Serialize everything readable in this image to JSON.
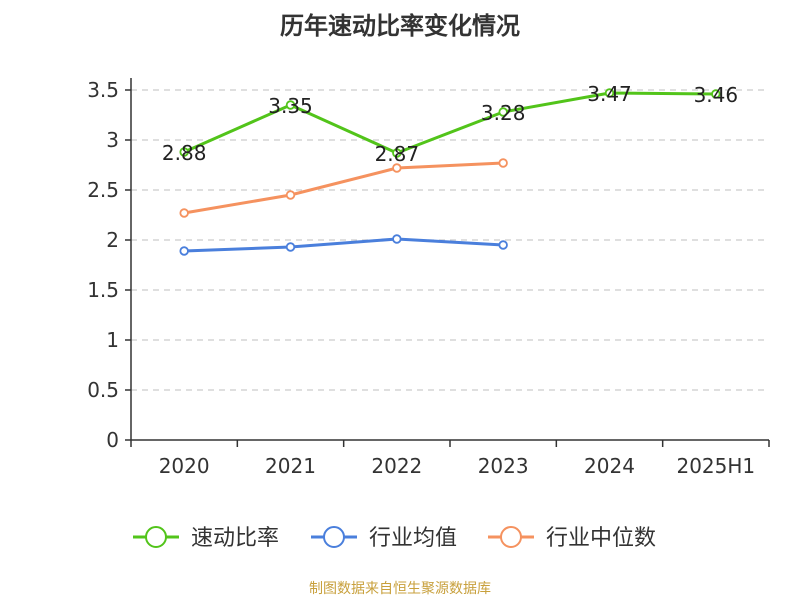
{
  "chart_data": {
    "type": "line",
    "title": "历年速动比率变化情况",
    "categories": [
      "2020",
      "2021",
      "2022",
      "2023",
      "2024",
      "2025H1"
    ],
    "ylim": [
      0,
      3.5
    ],
    "yticks": [
      "0",
      "0.5",
      "1",
      "1.5",
      "2",
      "2.5",
      "3",
      "3.5"
    ],
    "grid": true,
    "legend_position": "bottom",
    "series": [
      {
        "name": "速动比率",
        "color": "#52c41a",
        "values": [
          2.88,
          3.35,
          2.87,
          3.28,
          3.47,
          3.46
        ],
        "labels": [
          "2.88",
          "3.35",
          "2.87",
          "3.28",
          "3.47",
          "3.46"
        ]
      },
      {
        "name": "行业均值",
        "color": "#4a7fdc",
        "values": [
          1.89,
          1.93,
          2.01,
          1.95,
          null,
          null
        ]
      },
      {
        "name": "行业中位数",
        "color": "#f5925f",
        "values": [
          2.27,
          2.45,
          2.72,
          2.77,
          null,
          null
        ]
      }
    ]
  },
  "source_note": "制图数据来自恒生聚源数据库"
}
